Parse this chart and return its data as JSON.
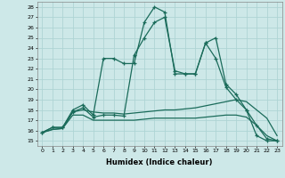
{
  "xlabel": "Humidex (Indice chaleur)",
  "bg_color": "#cde8e8",
  "line_color": "#1a6b5a",
  "grid_color": "#aed4d4",
  "xlim": [
    -0.5,
    23.5
  ],
  "ylim": [
    14.5,
    28.5
  ],
  "yticks": [
    15,
    16,
    17,
    18,
    19,
    20,
    21,
    22,
    23,
    24,
    25,
    26,
    27,
    28
  ],
  "xticks": [
    0,
    1,
    2,
    3,
    4,
    5,
    6,
    7,
    8,
    9,
    10,
    11,
    12,
    13,
    14,
    15,
    16,
    17,
    18,
    19,
    20,
    21,
    22,
    23
  ],
  "line1_marked": [
    15.8,
    16.3,
    16.3,
    18.0,
    18.5,
    17.5,
    23.0,
    23.0,
    22.5,
    22.5,
    26.5,
    28.0,
    27.5,
    21.5,
    21.5,
    21.5,
    24.5,
    25.0,
    20.5,
    19.5,
    18.0,
    15.5,
    15.0,
    15.0
  ],
  "line2_marked": [
    15.8,
    16.3,
    16.3,
    17.8,
    18.2,
    17.3,
    17.5,
    17.5,
    17.4,
    23.3,
    25.0,
    26.5,
    27.0,
    21.8,
    21.5,
    21.5,
    24.5,
    23.0,
    20.2,
    19.0,
    18.0,
    16.5,
    15.2,
    15.0
  ],
  "line3_plain": [
    15.8,
    16.1,
    16.2,
    17.8,
    18.0,
    17.8,
    17.7,
    17.7,
    17.6,
    17.7,
    17.8,
    17.9,
    18.0,
    18.0,
    18.1,
    18.2,
    18.4,
    18.6,
    18.8,
    19.0,
    18.8,
    18.0,
    17.2,
    15.5
  ],
  "line4_plain": [
    15.8,
    16.1,
    16.2,
    17.5,
    17.5,
    17.0,
    17.0,
    17.0,
    17.0,
    17.0,
    17.1,
    17.2,
    17.2,
    17.2,
    17.2,
    17.2,
    17.3,
    17.4,
    17.5,
    17.5,
    17.3,
    16.5,
    15.5,
    15.0
  ]
}
